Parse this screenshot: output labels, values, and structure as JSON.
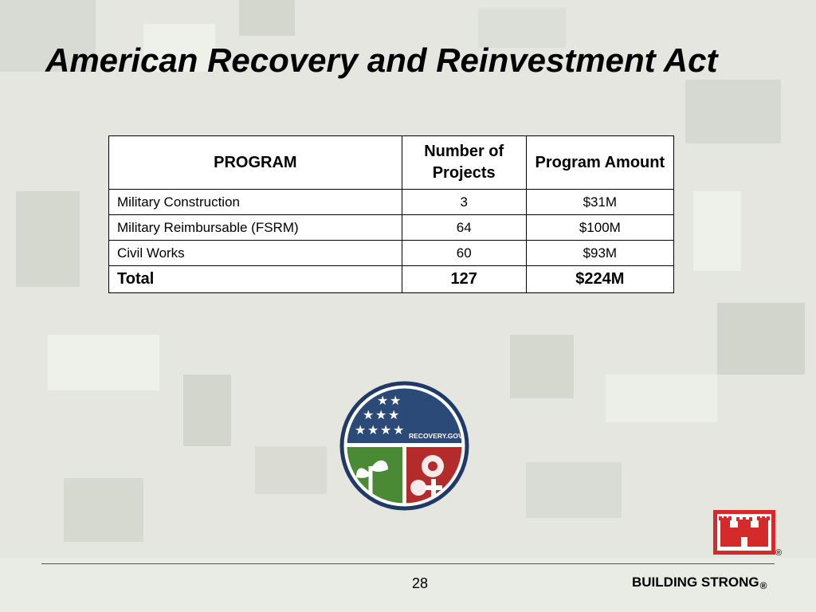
{
  "slide": {
    "title": "American Recovery and Reinvestment Act",
    "page_number": "28",
    "footer_brand": "BUILDING STRONG",
    "registered_mark": "®"
  },
  "table": {
    "headers": [
      "PROGRAM",
      "Number of Projects",
      "Program Amount"
    ],
    "rows": [
      {
        "program": "Military Construction",
        "projects": "3",
        "amount": "$31M"
      },
      {
        "program": "Military Reimbursable (FSRM)",
        "projects": "64",
        "amount": "$100M"
      },
      {
        "program": "Civil Works",
        "projects": "60",
        "amount": "$93M"
      }
    ],
    "total": {
      "label": "Total",
      "projects": "127",
      "amount": "$224M"
    }
  },
  "seal": {
    "text": "RECOVERY.GOV",
    "colors": {
      "blue": "#2b4a78",
      "green": "#4a8a34",
      "red": "#b32b2b",
      "ring": "#1f3a66"
    }
  },
  "logo": {
    "icon": "castle-icon",
    "color": "#d42a2a"
  }
}
